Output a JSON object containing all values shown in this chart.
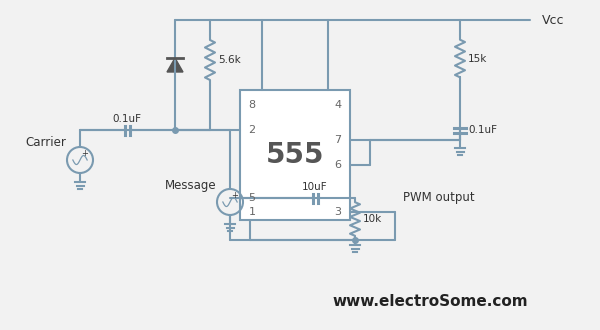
{
  "bg_color": "#f2f2f2",
  "line_color": "#7a9ab0",
  "line_width": 1.5,
  "text_color": "#333333",
  "ic_label": "555",
  "vcc_label": "Vcc",
  "pwm_label": "PWM output",
  "website": "www.electroSome.com",
  "carrier_label": "Carrier",
  "message_label": "Message",
  "r1_label": "5.6k",
  "r2_label": "10k",
  "r3_label": "15k",
  "c1_label": "0.1uF",
  "c2_label": "10uF",
  "c3_label": "0.1uF"
}
